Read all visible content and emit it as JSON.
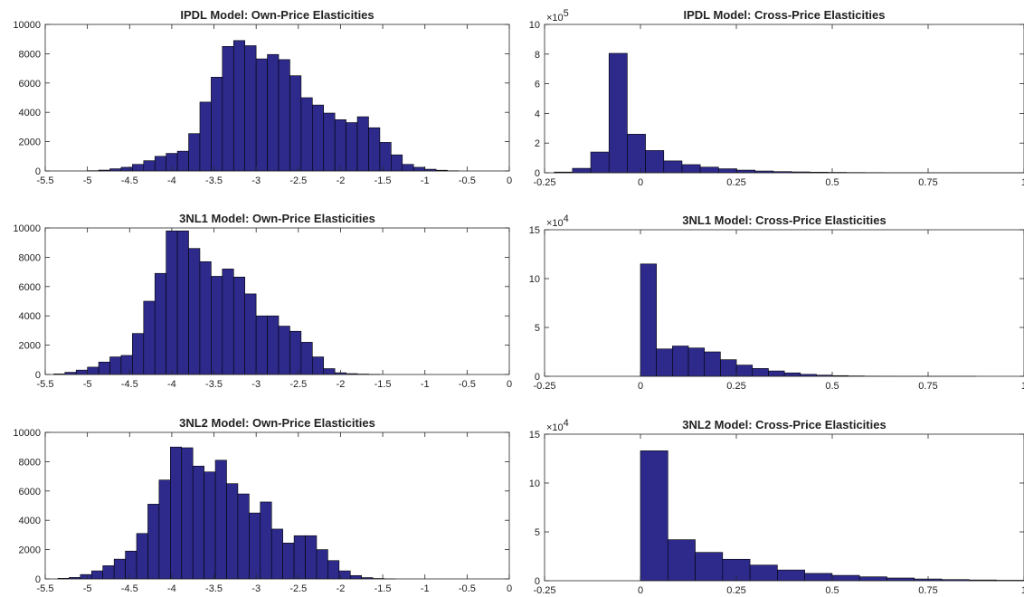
{
  "colors": {
    "bar_fill": "#2e2a8c",
    "bar_stroke": "#000000",
    "axis": "#262626"
  },
  "chart_data": [
    {
      "type": "bar",
      "title": "IPDL Model: Own-Price Elasticities",
      "xlabel": "",
      "ylabel": "",
      "xlim": [
        -5.5,
        0
      ],
      "ylim": [
        0,
        10000
      ],
      "xticks": [
        -5.5,
        -5,
        -4.5,
        -4,
        -3.5,
        -3,
        -2.5,
        -2,
        -1.5,
        -1,
        -0.5,
        0
      ],
      "xtick_labels": [
        "-5.5",
        "-5",
        "-4.5",
        "-4",
        "-3.5",
        "-3",
        "-2.5",
        "-2",
        "-1.5",
        "-1",
        "-0.5",
        "0"
      ],
      "yticks": [
        0,
        2000,
        4000,
        6000,
        8000,
        10000
      ],
      "ytick_labels": [
        "0",
        "2000",
        "4000",
        "6000",
        "8000",
        "10000"
      ],
      "bin_start": -5.0,
      "bin_width": 0.1333,
      "values": [
        20,
        60,
        150,
        250,
        450,
        700,
        1000,
        1200,
        1350,
        2550,
        4700,
        6400,
        8500,
        8900,
        8550,
        7650,
        7950,
        7600,
        6500,
        5000,
        4500,
        3950,
        3500,
        3300,
        3700,
        2950,
        1950,
        1100,
        450,
        250,
        120,
        50,
        15
      ]
    },
    {
      "type": "bar",
      "title": "IPDL Model: Cross-Price Elasticities",
      "xlabel": "",
      "ylabel": "",
      "xlim": [
        -0.25,
        1
      ],
      "ylim": [
        0,
        10
      ],
      "y_multiplier": "×10^5",
      "xticks": [
        -0.25,
        0,
        0.25,
        0.5,
        0.75,
        1
      ],
      "xtick_labels": [
        "-0.25",
        "0",
        "0.25",
        "0.5",
        "0.75",
        "1"
      ],
      "yticks": [
        0,
        2,
        4,
        6,
        8,
        10
      ],
      "ytick_labels": [
        "0",
        "2",
        "4",
        "6",
        "8",
        "10"
      ],
      "multiplier_base": "×10",
      "multiplier_exp": "5",
      "bin_start": -0.2248,
      "bin_width": 0.0476,
      "values": [
        0.05,
        0.3,
        1.4,
        8.05,
        2.6,
        1.5,
        0.8,
        0.55,
        0.38,
        0.27,
        0.18,
        0.12,
        0.08,
        0.06,
        0.04,
        0.03,
        0.02,
        0.015,
        0.01,
        0.008,
        0.006,
        0.004,
        0.003,
        0.002,
        0.001,
        0.001
      ]
    },
    {
      "type": "bar",
      "title": "3NL1 Model: Own-Price Elasticities",
      "xlabel": "",
      "ylabel": "",
      "xlim": [
        -5.5,
        0
      ],
      "ylim": [
        0,
        10000
      ],
      "xticks": [
        -5.5,
        -5,
        -4.5,
        -4,
        -3.5,
        -3,
        -2.5,
        -2,
        -1.5,
        -1,
        -0.5,
        0
      ],
      "xtick_labels": [
        "-5.5",
        "-5",
        "-4.5",
        "-4",
        "-3.5",
        "-3",
        "-2.5",
        "-2",
        "-1.5",
        "-1",
        "-0.5",
        "0"
      ],
      "yticks": [
        0,
        2000,
        4000,
        6000,
        8000,
        10000
      ],
      "ytick_labels": [
        "0",
        "2000",
        "4000",
        "6000",
        "8000",
        "10000"
      ],
      "bin_start": -5.4,
      "bin_width": 0.1333,
      "values": [
        40,
        150,
        300,
        500,
        850,
        1200,
        1300,
        2800,
        5000,
        6900,
        9800,
        9800,
        8600,
        7700,
        6700,
        7200,
        6650,
        5500,
        4000,
        4000,
        3300,
        2950,
        2200,
        1200,
        400,
        120,
        60,
        30,
        15
      ]
    },
    {
      "type": "bar",
      "title": "3NL1 Model: Cross-Price Elasticities",
      "xlabel": "",
      "ylabel": "",
      "xlim": [
        -0.25,
        1
      ],
      "ylim": [
        0,
        15
      ],
      "y_multiplier": "×10^4",
      "xticks": [
        -0.25,
        0,
        0.25,
        0.5,
        0.75,
        1
      ],
      "xtick_labels": [
        "-0.25",
        "0",
        "0.25",
        "0.5",
        "0.75",
        "1"
      ],
      "yticks": [
        0,
        5,
        10,
        15
      ],
      "ytick_labels": [
        "0",
        "5",
        "10",
        "15"
      ],
      "multiplier_base": "×10",
      "multiplier_exp": "4",
      "bin_start": 0.0,
      "bin_width": 0.0417,
      "values": [
        11.5,
        2.8,
        3.1,
        2.9,
        2.5,
        1.7,
        1.15,
        0.8,
        0.55,
        0.35,
        0.2,
        0.12,
        0.07,
        0.04,
        0.02,
        0.01,
        0.005,
        0.003,
        0.002,
        0.001,
        0.001
      ]
    },
    {
      "type": "bar",
      "title": "3NL2 Model: Own-Price Elasticities",
      "xlabel": "",
      "ylabel": "",
      "xlim": [
        -5.5,
        0
      ],
      "ylim": [
        0,
        10000
      ],
      "xticks": [
        -5.5,
        -5,
        -4.5,
        -4,
        -3.5,
        -3,
        -2.5,
        -2,
        -1.5,
        -1,
        -0.5,
        0
      ],
      "xtick_labels": [
        "-5.5",
        "-5",
        "-4.5",
        "-4",
        "-3.5",
        "-3",
        "-2.5",
        "-2",
        "-1.5",
        "-1",
        "-0.5",
        "0"
      ],
      "yticks": [
        0,
        2000,
        4000,
        6000,
        8000,
        10000
      ],
      "ytick_labels": [
        "0",
        "2000",
        "4000",
        "6000",
        "8000",
        "10000"
      ],
      "bin_start": -5.35,
      "bin_width": 0.1333,
      "values": [
        40,
        100,
        300,
        550,
        900,
        1350,
        1900,
        3100,
        5100,
        6750,
        9000,
        8950,
        7700,
        7300,
        8100,
        6500,
        5800,
        4500,
        5250,
        3400,
        2450,
        2950,
        2950,
        2000,
        1250,
        550,
        230,
        90,
        30,
        10
      ]
    },
    {
      "type": "bar",
      "title": "3NL2 Model: Cross-Price Elasticities",
      "xlabel": "",
      "ylabel": "",
      "xlim": [
        -0.25,
        1
      ],
      "ylim": [
        0,
        15
      ],
      "y_multiplier": "×10^4",
      "xticks": [
        -0.25,
        0,
        0.25,
        0.5,
        0.75,
        1
      ],
      "xtick_labels": [
        "-0.25",
        "0",
        "0.25",
        "0.5",
        "0.75",
        "1"
      ],
      "yticks": [
        0,
        5,
        10,
        15
      ],
      "ytick_labels": [
        "0",
        "5",
        "10",
        "15"
      ],
      "multiplier_base": "×10",
      "multiplier_exp": "4",
      "bin_start": 0.0,
      "bin_width": 0.0714,
      "values": [
        13.3,
        4.2,
        2.9,
        2.2,
        1.6,
        1.1,
        0.75,
        0.55,
        0.4,
        0.28,
        0.18,
        0.12,
        0.08,
        0.05
      ]
    }
  ]
}
